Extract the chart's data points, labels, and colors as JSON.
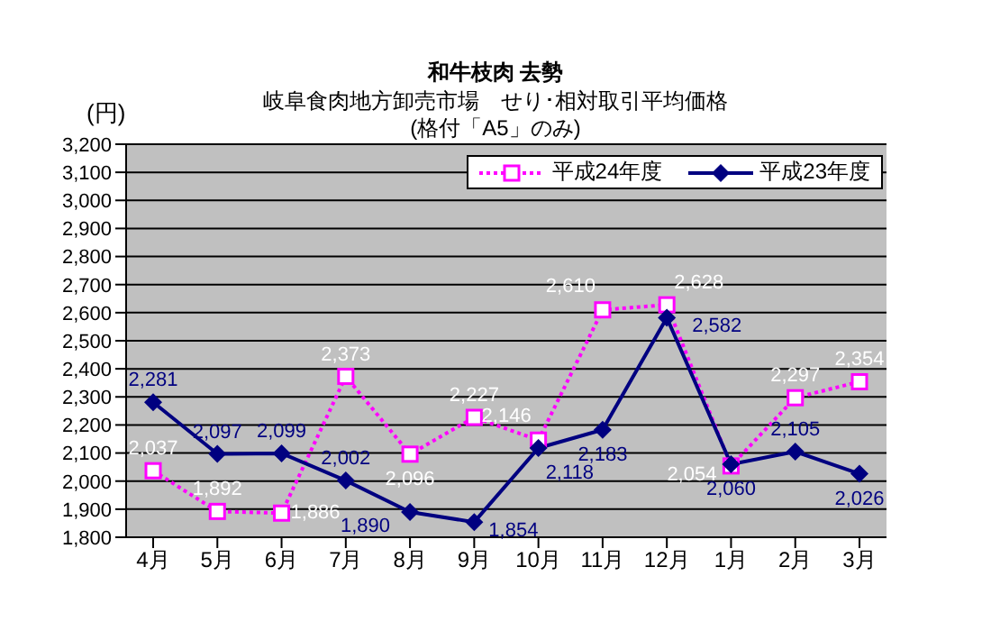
{
  "chart_data": {
    "type": "line",
    "title": "和牛枝肉  去勢",
    "subtitle": "岐阜食肉地方卸売市場　せり･相対取引平均価格\n(格付「A5」のみ)",
    "ylabel": "(円)",
    "categories": [
      "4月",
      "5月",
      "6月",
      "7月",
      "8月",
      "9月",
      "10月",
      "11月",
      "12月",
      "1月",
      "2月",
      "3月"
    ],
    "series": [
      {
        "name": "平成24年度",
        "color": "#ff00ff",
        "marker": "square",
        "line_style": "dotted",
        "values": [
          2037,
          1892,
          1886,
          2373,
          2096,
          2227,
          2146,
          2610,
          2628,
          2054,
          2297,
          2354
        ],
        "value_labels": [
          "2,037",
          "1,892",
          "1,886",
          "2,373",
          "2,096",
          "2,227",
          "2,146",
          "2,610",
          "2,628",
          "2,054",
          "2,297",
          "2,354"
        ]
      },
      {
        "name": "平成23年度",
        "color": "#000080",
        "marker": "diamond",
        "line_style": "solid",
        "values": [
          2281,
          2097,
          2099,
          2002,
          1890,
          1854,
          2118,
          2183,
          2582,
          2060,
          2105,
          2026
        ],
        "value_labels": [
          "2,281",
          "2,097",
          "2,099",
          "2,002",
          "1,890",
          "1,854",
          "2,118",
          "2,183",
          "2,582",
          "2,060",
          "2,105",
          "2,026"
        ]
      }
    ],
    "ylim": [
      1800,
      3200
    ],
    "yticks": [
      {
        "value": 1800,
        "label": "1,800"
      },
      {
        "value": 1900,
        "label": "1,900"
      },
      {
        "value": 2000,
        "label": "2,000"
      },
      {
        "value": 2100,
        "label": "2,100"
      },
      {
        "value": 2200,
        "label": "2,200"
      },
      {
        "value": 2300,
        "label": "2,300"
      },
      {
        "value": 2400,
        "label": "2,400"
      },
      {
        "value": 2500,
        "label": "2,500"
      },
      {
        "value": 2600,
        "label": "2,600"
      },
      {
        "value": 2700,
        "label": "2,700"
      },
      {
        "value": 2800,
        "label": "2,800"
      },
      {
        "value": 2900,
        "label": "2,900"
      },
      {
        "value": 3000,
        "label": "3,000"
      },
      {
        "value": 3100,
        "label": "3,100"
      },
      {
        "value": 3200,
        "label": "3,200"
      }
    ],
    "grid": "y",
    "legend": "top right",
    "data_labels": true
  }
}
